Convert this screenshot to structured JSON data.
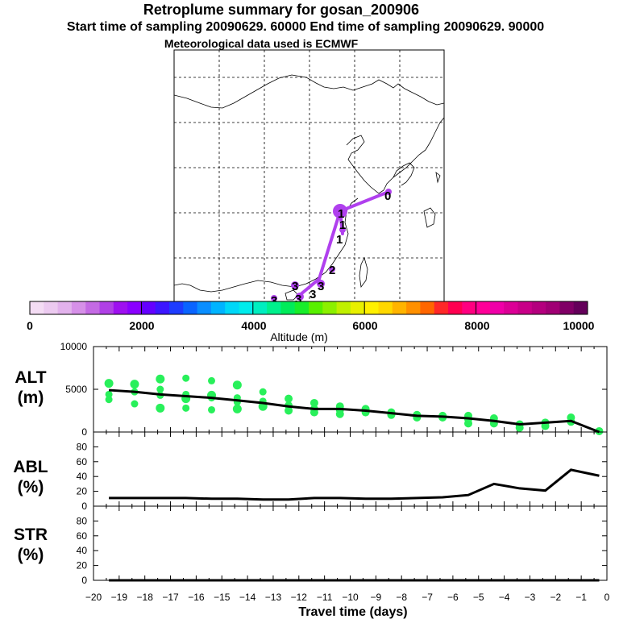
{
  "title": "Retroplume summary for gosan_200906",
  "subtitle": "Start time of sampling 20090629. 60000     End time of sampling 20090629. 90000",
  "met": "Meteorological data used is ECMWF",
  "map": {
    "labels": [
      "0",
      "1",
      "1",
      "1",
      "2",
      "3",
      "3",
      "3",
      "3",
      "3"
    ]
  },
  "colorbar": {
    "ticks": [
      "0",
      "2000",
      "4000",
      "6000",
      "8000",
      "10000"
    ],
    "label": "Altitude (m)",
    "colors": [
      "#f4dcf4",
      "#eccaf0",
      "#e2b2ec",
      "#d690e8",
      "#c46ae4",
      "#b040e6",
      "#9e10f0",
      "#8a00ff",
      "#6400ff",
      "#3c16ff",
      "#1e3cff",
      "#0a64ff",
      "#0a8eff",
      "#00b4ff",
      "#00d8f8",
      "#00ecec",
      "#00eec0",
      "#00f08c",
      "#00ec5a",
      "#18ee2a",
      "#58f000",
      "#8cf000",
      "#c0f000",
      "#e8f000",
      "#fff000",
      "#ffd800",
      "#ffb400",
      "#ff9000",
      "#ff6600",
      "#ff2828",
      "#ff0050",
      "#ff0080",
      "#ff0098",
      "#f000a8",
      "#dc0096",
      "#c80088",
      "#b4007e",
      "#a00074",
      "#800066",
      "#64005a"
    ]
  },
  "chart_data": [
    {
      "type": "line",
      "name": "ALT",
      "ylabel": "ALT\n(m)",
      "ylabel_line1": "ALT",
      "ylabel_line2": "(m)",
      "ylim": [
        0,
        10000
      ],
      "yticks": [
        "0",
        "5000",
        "10000"
      ],
      "x": [
        -19.4,
        -18.4,
        -17.4,
        -16.4,
        -15.4,
        -14.4,
        -13.4,
        -12.4,
        -11.4,
        -10.4,
        -9.4,
        -8.4,
        -7.4,
        -6.4,
        -5.4,
        -4.4,
        -3.4,
        -2.4,
        -1.4,
        -0.3
      ],
      "series": [
        {
          "name": "mean altitude",
          "values": [
            4900,
            4700,
            4400,
            4200,
            4000,
            3700,
            3400,
            3000,
            2700,
            2700,
            2500,
            2200,
            1900,
            1800,
            1600,
            1300,
            900,
            1100,
            1300,
            0
          ]
        }
      ],
      "scatter": [
        {
          "x": -19.4,
          "y": 5700
        },
        {
          "x": -19.4,
          "y": 4400
        },
        {
          "x": -19.4,
          "y": 3800
        },
        {
          "x": -18.4,
          "y": 5600
        },
        {
          "x": -18.4,
          "y": 4700
        },
        {
          "x": -18.4,
          "y": 3300
        },
        {
          "x": -17.4,
          "y": 6200
        },
        {
          "x": -17.4,
          "y": 5000
        },
        {
          "x": -17.4,
          "y": 4300
        },
        {
          "x": -17.4,
          "y": 2800
        },
        {
          "x": -16.4,
          "y": 6300
        },
        {
          "x": -16.4,
          "y": 4400
        },
        {
          "x": -16.4,
          "y": 3900
        },
        {
          "x": -16.4,
          "y": 2800
        },
        {
          "x": -15.4,
          "y": 6000
        },
        {
          "x": -15.4,
          "y": 4300
        },
        {
          "x": -15.4,
          "y": 4000
        },
        {
          "x": -15.4,
          "y": 2600
        },
        {
          "x": -14.4,
          "y": 5500
        },
        {
          "x": -14.4,
          "y": 4000
        },
        {
          "x": -14.4,
          "y": 3500
        },
        {
          "x": -14.4,
          "y": 2700
        },
        {
          "x": -13.4,
          "y": 4700
        },
        {
          "x": -13.4,
          "y": 3600
        },
        {
          "x": -13.4,
          "y": 3000
        },
        {
          "x": -12.4,
          "y": 3900
        },
        {
          "x": -12.4,
          "y": 3100
        },
        {
          "x": -12.4,
          "y": 2500
        },
        {
          "x": -11.4,
          "y": 3400
        },
        {
          "x": -11.4,
          "y": 2700
        },
        {
          "x": -11.4,
          "y": 2300
        },
        {
          "x": -10.4,
          "y": 3000
        },
        {
          "x": -10.4,
          "y": 2600
        },
        {
          "x": -10.4,
          "y": 2100
        },
        {
          "x": -9.4,
          "y": 2700
        },
        {
          "x": -9.4,
          "y": 2300
        },
        {
          "x": -8.4,
          "y": 2300
        },
        {
          "x": -8.4,
          "y": 2000
        },
        {
          "x": -7.4,
          "y": 2000
        },
        {
          "x": -7.4,
          "y": 1700
        },
        {
          "x": -6.4,
          "y": 1900
        },
        {
          "x": -6.4,
          "y": 1700
        },
        {
          "x": -5.4,
          "y": 1900
        },
        {
          "x": -5.4,
          "y": 1500
        },
        {
          "x": -5.4,
          "y": 1000
        },
        {
          "x": -4.4,
          "y": 1600
        },
        {
          "x": -4.4,
          "y": 1000
        },
        {
          "x": -3.4,
          "y": 900
        },
        {
          "x": -3.4,
          "y": 500
        },
        {
          "x": -2.4,
          "y": 1100
        },
        {
          "x": -2.4,
          "y": 700
        },
        {
          "x": -1.4,
          "y": 1700
        },
        {
          "x": -1.4,
          "y": 1200
        },
        {
          "x": -0.3,
          "y": 100
        }
      ]
    },
    {
      "type": "line",
      "name": "ABL",
      "ylabel_line1": "ABL",
      "ylabel_line2": "(%)",
      "ylim": [
        0,
        100
      ],
      "yticks": [
        "0",
        "20",
        "40",
        "60",
        "80"
      ],
      "x": [
        -19.4,
        -18.4,
        -17.4,
        -16.4,
        -15.4,
        -14.4,
        -13.4,
        -12.4,
        -11.4,
        -10.4,
        -9.4,
        -8.4,
        -7.4,
        -6.4,
        -5.4,
        -4.4,
        -3.4,
        -2.4,
        -1.4,
        -0.3
      ],
      "series": [
        {
          "name": "ABL fraction",
          "values": [
            11,
            11,
            11,
            11,
            10,
            10,
            9,
            9,
            11,
            11,
            10,
            10,
            11,
            12,
            15,
            30,
            24,
            21,
            49,
            41
          ]
        }
      ]
    },
    {
      "type": "line",
      "name": "STR",
      "ylabel_line1": "STR",
      "ylabel_line2": "(%)",
      "ylim": [
        0,
        100
      ],
      "yticks": [
        "0",
        "20",
        "40",
        "60",
        "80"
      ],
      "x": [
        -19.4,
        -18.4,
        -17.4,
        -16.4,
        -15.4,
        -14.4,
        -13.4,
        -12.4,
        -11.4,
        -10.4,
        -9.4,
        -8.4,
        -7.4,
        -6.4,
        -5.4,
        -4.4,
        -3.4,
        -2.4,
        -1.4,
        -0.3
      ],
      "series": [
        {
          "name": "STR fraction",
          "values": [
            0,
            0,
            0,
            0,
            0,
            0,
            0,
            0,
            0,
            0,
            0,
            0,
            0,
            0,
            0,
            0,
            0,
            0,
            0,
            0
          ]
        }
      ]
    }
  ],
  "xaxis": {
    "label": "Travel time (days)",
    "xlim": [
      -20,
      0
    ],
    "ticks": [
      "−20",
      "−19",
      "−18",
      "−17",
      "−16",
      "−15",
      "−14",
      "−13",
      "−12",
      "−11",
      "−10",
      "−9",
      "−8",
      "−7",
      "−6",
      "−5",
      "−4",
      "−3",
      "−2",
      "−1",
      "0"
    ]
  },
  "colors": {
    "plume": "#b040ee",
    "scatter": "#28f05a",
    "line": "#000000"
  }
}
